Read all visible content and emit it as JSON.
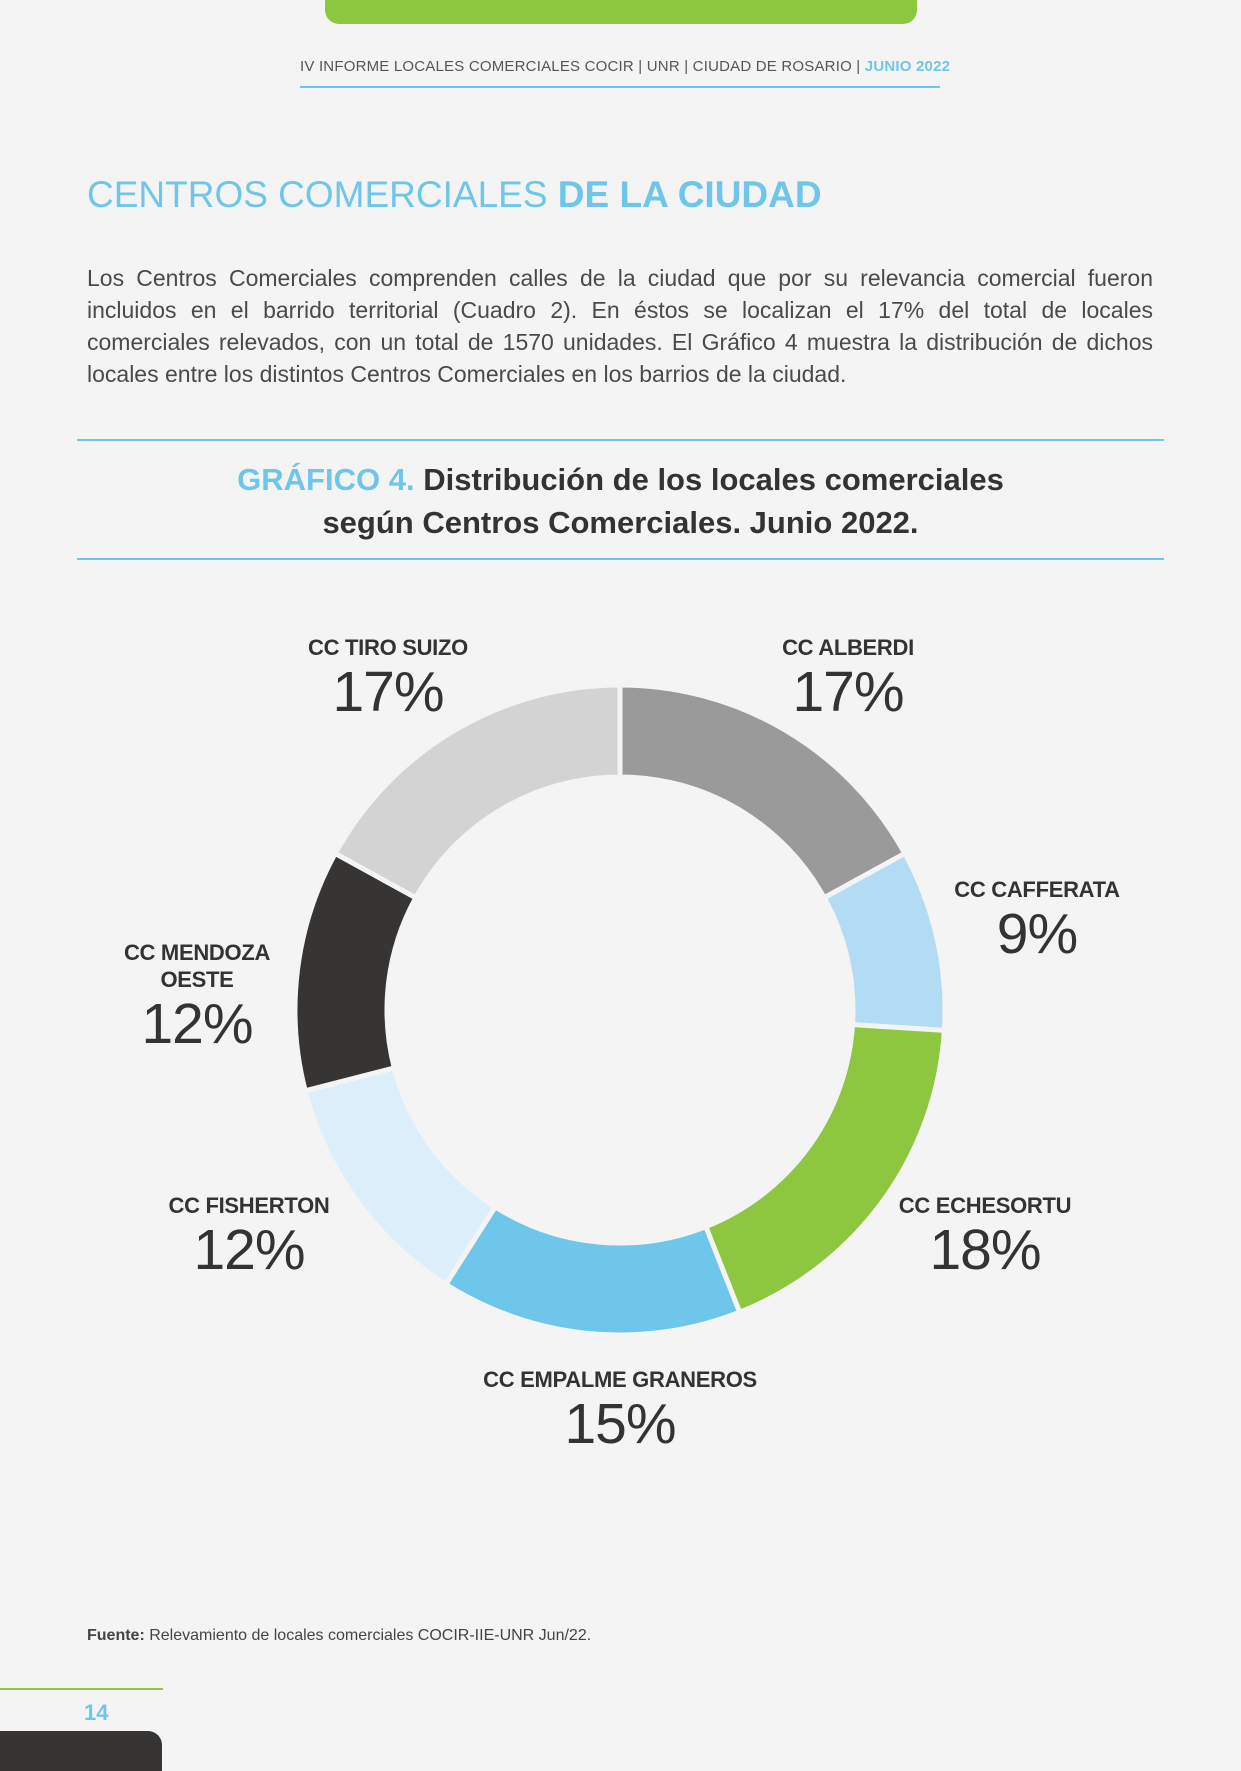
{
  "header": {
    "running_text": "IV INFORME LOCALES COMERCIALES COCIR | UNR | CIUDAD DE ROSARIO | ",
    "running_date": "JUNIO 2022"
  },
  "section": {
    "title_light": "CENTROS COMERCIALES ",
    "title_bold": "DE LA CIUDAD",
    "intro": "Los Centros Comerciales comprenden calles de la ciudad que por su relevancia comercial fueron incluidos en el barrido territorial (Cuadro 2). En éstos se localizan el 17% del total de locales comerciales relevados, con un total de 1570 unidades. El Gráfico 4 muestra la distribución de dichos locales entre los distintos Centros Comerciales en los barrios de la ciudad."
  },
  "chart_data": {
    "type": "pie",
    "donut": true,
    "title_prefix": "GRÁFICO 4.",
    "title_line1": "Distribución de los locales comerciales",
    "title_line2": "según Centros Comerciales. Junio 2022.",
    "slices": [
      {
        "label": "CC ALBERDI",
        "value": 17,
        "display": "17%",
        "color": "#9a9a9b"
      },
      {
        "label": "CC CAFFERATA",
        "value": 9,
        "display": "9%",
        "color": "#b1dcf4"
      },
      {
        "label": "CC ECHESORTU",
        "value": 18,
        "display": "18%",
        "color": "#8dc63f"
      },
      {
        "label": "CC EMPALME GRANEROS",
        "value": 15,
        "display": "15%",
        "color": "#6ec6ea"
      },
      {
        "label": "CC FISHERTON",
        "value": 12,
        "display": "12%",
        "color": "#dceffa"
      },
      {
        "label": "CC MENDOZA OESTE",
        "value": 12,
        "display": "12%",
        "color": "#373434"
      },
      {
        "label": "CC TIRO SUIZO",
        "value": 17,
        "display": "17%",
        "color": "#d3d3d3"
      }
    ]
  },
  "source": {
    "label": "Fuente:",
    "text": " Relevamiento de locales comerciales COCIR-IIE-UNR Jun/22."
  },
  "footer": {
    "page_number": "14"
  }
}
